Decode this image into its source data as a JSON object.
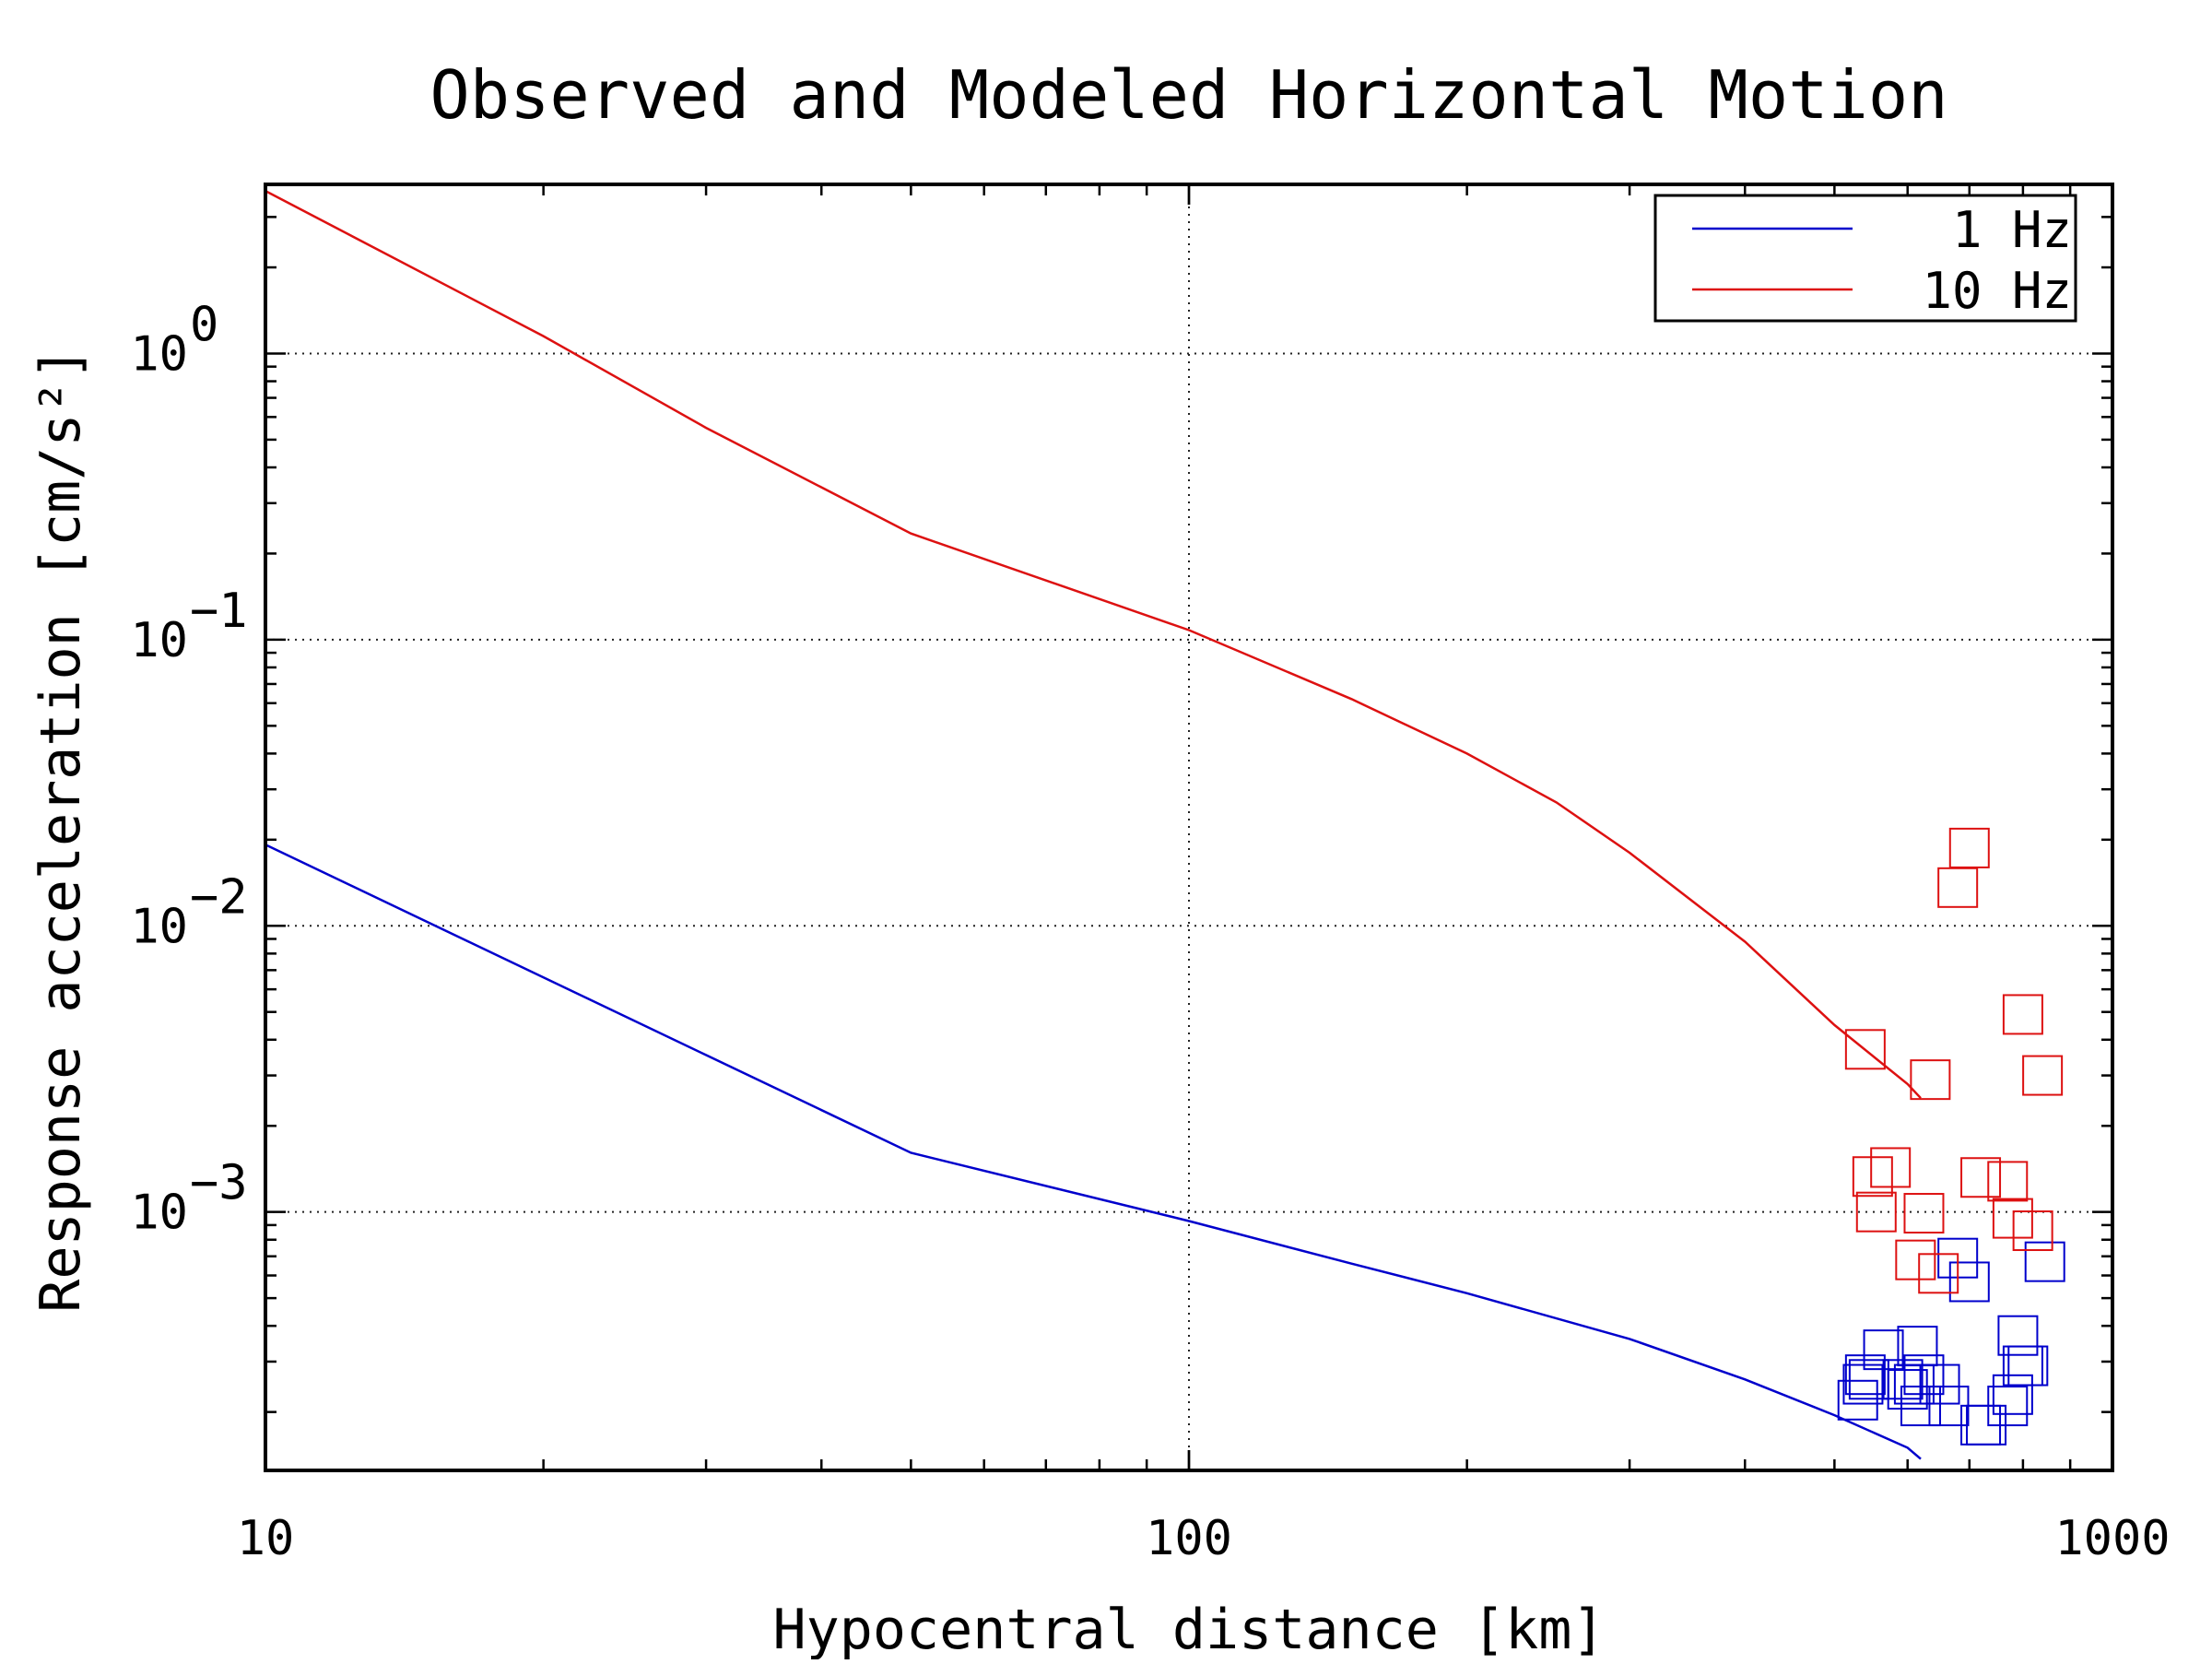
{
  "chart_data": {
    "type": "scatter",
    "title": "Observed and Modeled Horizontal Motion",
    "xlabel": "Hypocentral distance [km]",
    "ylabel": "Response acceleration [cm/s²]",
    "xscale": "log",
    "yscale": "log",
    "xlim": [
      10,
      1000
    ],
    "ylim": [
      0.000125,
      3.9
    ],
    "grid": true,
    "legend_position": "top-right",
    "x_ticks": [
      {
        "value": 10,
        "label": "10"
      },
      {
        "value": 100,
        "label": "100"
      },
      {
        "value": 1000,
        "label": "1000"
      }
    ],
    "y_ticks": [
      {
        "value": 1,
        "base": "10",
        "exp": "0"
      },
      {
        "value": 0.1,
        "base": "10",
        "exp": "−1"
      },
      {
        "value": 0.01,
        "base": "10",
        "exp": "−2"
      },
      {
        "value": 0.001,
        "base": "10",
        "exp": "−3"
      }
    ],
    "series": [
      {
        "name": "1 Hz",
        "color": "#0000cc",
        "model_line": {
          "x": [
            10,
            50,
            100,
            150,
            200,
            300,
            400,
            500,
            600,
            620
          ],
          "y": [
            0.0192,
            0.00161,
            0.00093,
            0.00066,
            0.00052,
            0.00036,
            0.00026,
            0.000195,
            0.00015,
            0.000137
          ]
        },
        "observed": {
          "x": [
            530,
            537,
            540,
            545,
            565,
            593,
            600,
            610,
            615,
            620,
            625,
            650,
            665,
            680,
            700,
            720,
            730,
            770,
            780,
            790,
            800,
            810,
            845
          ],
          "y": [
            0.00022,
            0.00025,
            0.00027,
            0.00026,
            0.00033,
            0.00026,
            0.00024,
            0.00025,
            0.00034,
            0.00021,
            0.00027,
            0.00025,
            0.00021,
            0.00069,
            0.00057,
            0.00018,
            0.00018,
            0.00021,
            0.00023,
            0.00037,
            0.00029,
            0.00029,
            0.00067
          ]
        }
      },
      {
        "name": "10 Hz",
        "color": "#dd1111",
        "model_line": {
          "x": [
            10,
            20,
            30,
            50,
            100,
            150,
            200,
            250,
            300,
            400,
            500,
            600,
            620
          ],
          "y": [
            3.7,
            1.15,
            0.55,
            0.235,
            0.108,
            0.062,
            0.04,
            0.027,
            0.018,
            0.0088,
            0.0045,
            0.0028,
            0.0025
          ]
        },
        "observed": {
          "x": [
            540,
            550,
            555,
            575,
            612,
            625,
            635,
            648,
            680,
            700,
            720,
            770,
            780,
            800,
            820,
            840
          ],
          "y": [
            0.0037,
            0.00133,
            0.001,
            0.00143,
            0.00068,
            0.00099,
            0.0029,
            0.00061,
            0.0136,
            0.0187,
            0.00132,
            0.00128,
            0.00095,
            0.0049,
            0.00086,
            0.003
          ]
        }
      }
    ]
  }
}
